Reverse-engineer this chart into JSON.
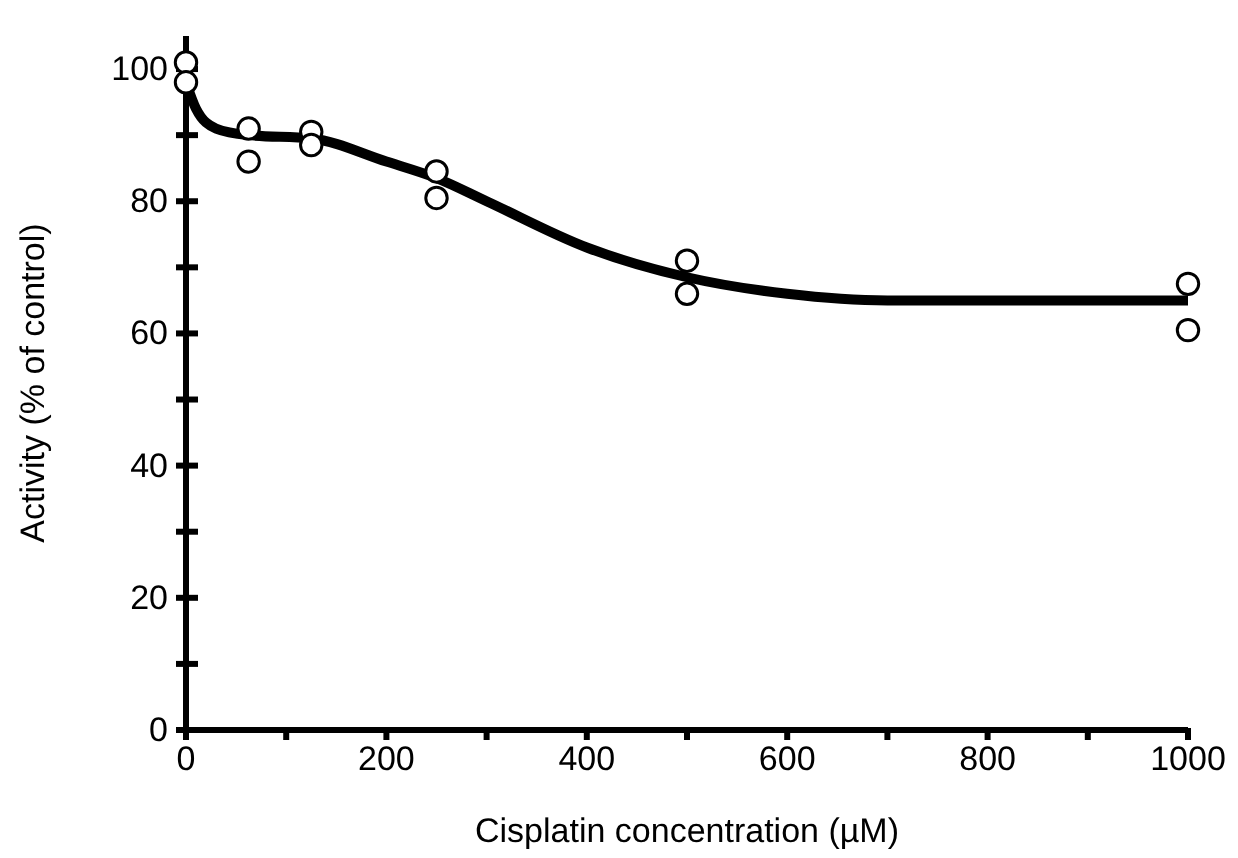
{
  "chart_data": {
    "type": "scatter",
    "xlabel": "Cisplatin concentration (µM)",
    "ylabel": "Activity (% of control)",
    "xlim": [
      0,
      1000
    ],
    "ylim": [
      0,
      105
    ],
    "xticks": [
      0,
      {
        "value": 100,
        "label": null
      },
      200,
      {
        "value": 300,
        "label": null
      },
      400,
      {
        "value": 500,
        "label": null
      },
      600,
      {
        "value": 700,
        "label": null
      },
      800,
      {
        "value": 900,
        "label": null
      },
      1000
    ],
    "yticks": [
      0,
      {
        "value": 10,
        "label": null
      },
      20,
      {
        "value": 30,
        "label": null
      },
      40,
      {
        "value": 50,
        "label": null
      },
      60,
      {
        "value": 70,
        "label": null
      },
      80,
      {
        "value": 90,
        "label": null
      },
      100
    ],
    "grid": false,
    "series": [
      {
        "color": "#000000",
        "marker": "circle",
        "x": [
          0,
          0,
          62.5,
          62.5,
          125,
          125,
          250,
          250,
          500,
          500,
          1000,
          1000
        ],
        "values": [
          101,
          98,
          91,
          86,
          90.5,
          88.5,
          84.5,
          80.5,
          71,
          66,
          67.5,
          60.5
        ]
      },
      {
        "type": "line",
        "color": "#000000",
        "marker": "none",
        "line_style": "solid",
        "x": [
          0,
          10,
          30,
          62.5,
          125,
          200,
          250,
          300,
          400,
          500,
          600,
          700,
          800,
          900,
          1000
        ],
        "values": [
          98,
          94,
          91,
          90,
          89.5,
          86,
          83.5,
          80,
          73,
          68.5,
          66,
          65,
          65,
          65,
          65
        ]
      }
    ]
  }
}
